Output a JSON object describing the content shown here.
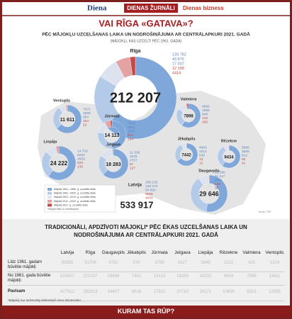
{
  "header": {
    "logo_1": "Diena",
    "logo_2": "DIENAS ŽURNĀLI",
    "logo_3": "Dienas bizness"
  },
  "chart_data": {
    "type": "donut",
    "title": "VAI RĪGA «GATAVA»?",
    "subtitle": "PĒC MĀJOKĻU UZCELŠANAS LAIKA UN NODROŠINĀJUMA AR CENTRĀLAPKURI 2021. GADĀ",
    "note": "(MĀJOKĻI, KAS UZCELTI PĒC 1961. GADA)",
    "colors": [
      "#7fa7d9",
      "#b4cae9",
      "#dde3ee",
      "#e4a2a2",
      "#c24a4a"
    ],
    "legend": [
      "Mājokļi 1961.–1980. g. uzceltās ēkās",
      "Mājokļi 1981.–2000. g. uzceltās ēkās",
      "Mājokļi 2001.–2010. g. uzceltās ēkās",
      "Mājokļi 2011.–2020. g. uzceltās ēkās",
      "Mājokļi 2021. g. uzceltās ēkās"
    ],
    "legend_note": "*Mājokļi ēkās ar centrālapkuri",
    "series": [
      {
        "name": "Rīga",
        "total": 212207,
        "total_label": "212 207",
        "values": [
          133782,
          43876,
          17937,
          12198,
          4414
        ],
        "value_labels": [
          "133 782",
          "43 876",
          "17 937",
          "12 198",
          "4414"
        ]
      },
      {
        "name": "Ventspils",
        "total": 11611,
        "total_label": "11 611",
        "values": [
          7372,
          3069,
          954,
          194,
          22
        ],
        "value_labels": [
          "7372",
          "3069",
          "954",
          "194",
          "22"
        ]
      },
      {
        "name": "Valmiera",
        "total": 7898,
        "total_label": "7898",
        "values": [
          4690,
          1955,
          948,
          145,
          160
        ],
        "value_labels": [
          "4690",
          "1955",
          "948",
          "145",
          "160"
        ]
      },
      {
        "name": "Jūrmala",
        "total": 14113,
        "total_label": "14 113",
        "values": [
          7033,
          3931,
          1943,
          912,
          294
        ],
        "value_labels": [
          "7033",
          "3931",
          "1943",
          "912",
          "294"
        ]
      },
      {
        "name": "Liepāja",
        "total": 24222,
        "total_label": "24 222",
        "values": [
          14703,
          6222,
          2633,
          529,
          135
        ],
        "value_labels": [
          "14 703",
          "6222",
          "2633",
          "529",
          "135"
        ]
      },
      {
        "name": "Jelgava",
        "total": 18283,
        "total_label": "18 283",
        "values": [
          11330,
          4032,
          2707,
          87,
          127
        ],
        "value_labels": [
          "11 330",
          "4032",
          "2707",
          "87",
          "127"
        ]
      },
      {
        "name": "Jēkabpils",
        "total": 7442,
        "total_label": "7442",
        "values": [
          4863,
          2013,
          540,
          13,
          13
        ],
        "value_labels": [
          "4863",
          "2013",
          "540",
          "13",
          "13"
        ]
      },
      {
        "name": "Rēzekne",
        "total": 9434,
        "total_label": "9434",
        "values": [
          5666,
          3065,
          612,
          50,
          41
        ],
        "value_labels": [
          "5666",
          "3065",
          "612",
          "50",
          "41"
        ]
      },
      {
        "name": "Daugavpils",
        "total": 29646,
        "total_label": "29 646",
        "values": [
          15590,
          11217,
          2661,
          140,
          38
        ],
        "value_labels": [
          "15 590",
          "11 217",
          "2661",
          "140",
          "38"
        ]
      }
    ],
    "country": {
      "name": "Latvija",
      "total": 533917,
      "total_label": "533 917",
      "values": [
        338132,
        128272,
        54854,
        8658,
        4001
      ],
      "value_labels": [
        "338 132",
        "128 272",
        "54 854",
        "8658",
        "4001"
      ]
    }
  },
  "table": {
    "title": "TRADICIONĀLI, APDZĪVOTI MĀJOKĻI* PĒC ĒKAS UZCELŠANAS LAIKA UN NODROŠINĀJUMA AR CENTRĀLAPKURI 2021. GADĀ",
    "columns": [
      "Latvija",
      "Rīga",
      "Daugavpils",
      "Jēkabpils",
      "Jūrmala",
      "Jelgava",
      "Liepāja",
      "Rēzekne",
      "Valmiera",
      "Ventspils"
    ],
    "rows": [
      {
        "label": "Līdz 1961. gadam būvētie mājokļi",
        "values": [
          93995,
          51706,
          4781,
          576,
          3799,
          2427,
          3949,
          1202,
          425,
          1324
        ]
      },
      {
        "label": "No 1961. gada būvētie mājokļi",
        "values": [
          533917,
          212207,
          29646,
          7442,
          14113,
          18283,
          24222,
          9434,
          7898,
          11611
        ]
      },
      {
        "label": "Pavisam",
        "values": [
          627912,
          263913,
          34427,
          8018,
          17912,
          20710,
          28171,
          10636,
          8323,
          12935
        ]
      }
    ],
    "footnote": "*Mājokļi, kur iedzīvotāji deklarējuši savu dzīvesvietu"
  },
  "footer": "KURAM TAS RŪP?"
}
